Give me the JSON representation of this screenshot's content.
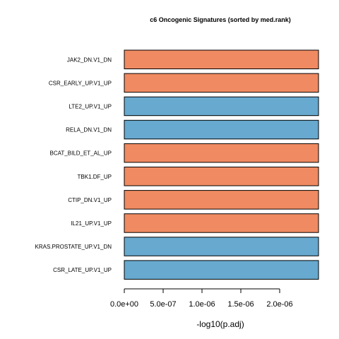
{
  "chart_data": {
    "type": "bar",
    "orientation": "horizontal",
    "title": "c6 Oncogenic Signatures (sorted by med.rank)",
    "xlabel": "-log10(p.adj)",
    "ylabel": "",
    "categories": [
      "JAK2_DN.V1_DN",
      "CSR_EARLY_UP.V1_UP",
      "LTE2_UP.V1_UP",
      "RELA_DN.V1_DN",
      "BCAT_BILD_ET_AL_UP",
      "TBK1.DF_UP",
      "CTIP_DN.V1_UP",
      "IL21_UP.V1_UP",
      "KRAS.PROSTATE_UP.V1_DN",
      "CSR_LATE_UP.V1_UP"
    ],
    "values": [
      2.5e-06,
      2.5e-06,
      2.5e-06,
      2.5e-06,
      2.5e-06,
      2.5e-06,
      2.5e-06,
      2.5e-06,
      2.5e-06,
      2.5e-06
    ],
    "direction": [
      "up",
      "up",
      "down",
      "down",
      "up",
      "up",
      "up",
      "up",
      "down",
      "down"
    ],
    "colors": {
      "up": "#ef8a62",
      "down": "#67a9cf",
      "stroke": "#000000"
    },
    "xlim": [
      0,
      2.5e-06
    ],
    "xticks": [
      0,
      5e-07,
      1e-06,
      1.5e-06,
      2e-06
    ],
    "xtick_labels": [
      "0.0e+00",
      "5.0e-07",
      "1.0e-06",
      "1.5e-06",
      "2.0e-06"
    ],
    "grid": false,
    "legend": "none"
  }
}
